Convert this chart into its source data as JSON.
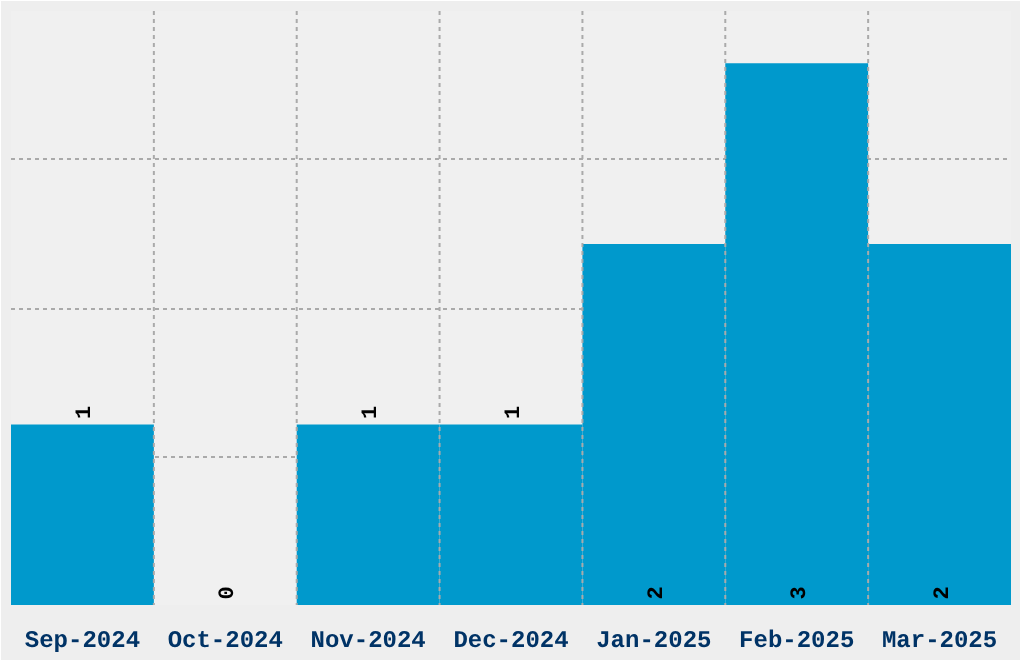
{
  "chart_data": {
    "type": "bar",
    "categories": [
      "Sep-2024",
      "Oct-2024",
      "Nov-2024",
      "Dec-2024",
      "Jan-2025",
      "Feb-2025",
      "Mar-2025"
    ],
    "values": [
      1,
      0,
      1,
      1,
      2,
      3,
      2
    ],
    "color": "#0099cc",
    "ylim": [
      0,
      3.29
    ],
    "tick_labels": "x",
    "grid": true,
    "data_labels": true
  }
}
